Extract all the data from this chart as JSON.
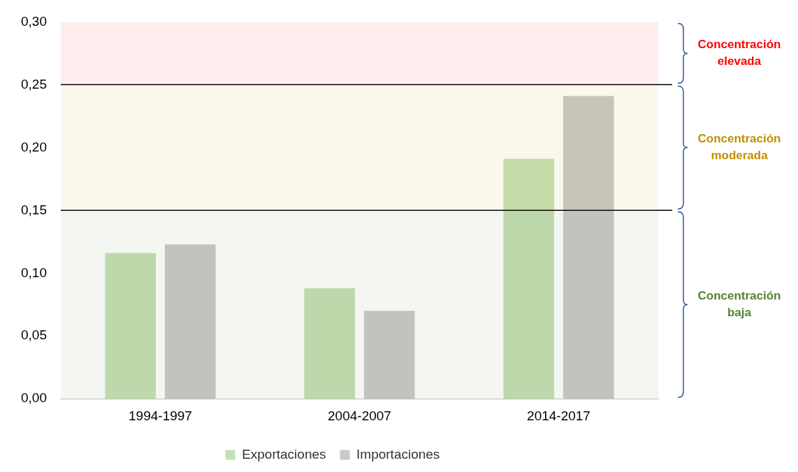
{
  "chart_data": {
    "type": "bar",
    "categories": [
      "1994-1997",
      "2004-2007",
      "2014-2017"
    ],
    "series": [
      {
        "name": "Exportaciones",
        "color": "#c5e0b4",
        "values": [
          0.116,
          0.088,
          0.191
        ]
      },
      {
        "name": "Importaciones",
        "color": "#c9c9c9",
        "values": [
          0.123,
          0.07,
          0.241
        ]
      }
    ],
    "ylim": [
      0,
      0.3
    ],
    "yticks": [
      {
        "value": 0,
        "label": "0,00"
      },
      {
        "value": 0.05,
        "label": "0,05"
      },
      {
        "value": 0.1,
        "label": "0,10"
      },
      {
        "value": 0.15,
        "label": "0,15"
      },
      {
        "value": 0.2,
        "label": "0,20"
      },
      {
        "value": 0.25,
        "label": "0,25"
      },
      {
        "value": 0.3,
        "label": "0,30"
      }
    ],
    "ref_lines": [
      {
        "axis": "y",
        "value": 0.25,
        "color": "#000000"
      },
      {
        "axis": "y",
        "value": 0.15,
        "color": "#000000"
      }
    ],
    "bands": [
      {
        "axis": "y",
        "from": 0.25,
        "to": 0.3,
        "label": "Concentración elevada",
        "color": "#ff0000"
      },
      {
        "axis": "y",
        "from": 0.15,
        "to": 0.25,
        "label": "Concentración moderada",
        "color": "#bf9000"
      },
      {
        "axis": "y",
        "from": 0,
        "to": 0.15,
        "label": "Concentración baja",
        "color": "#548235"
      }
    ],
    "grid": false,
    "legend": "bottom"
  }
}
